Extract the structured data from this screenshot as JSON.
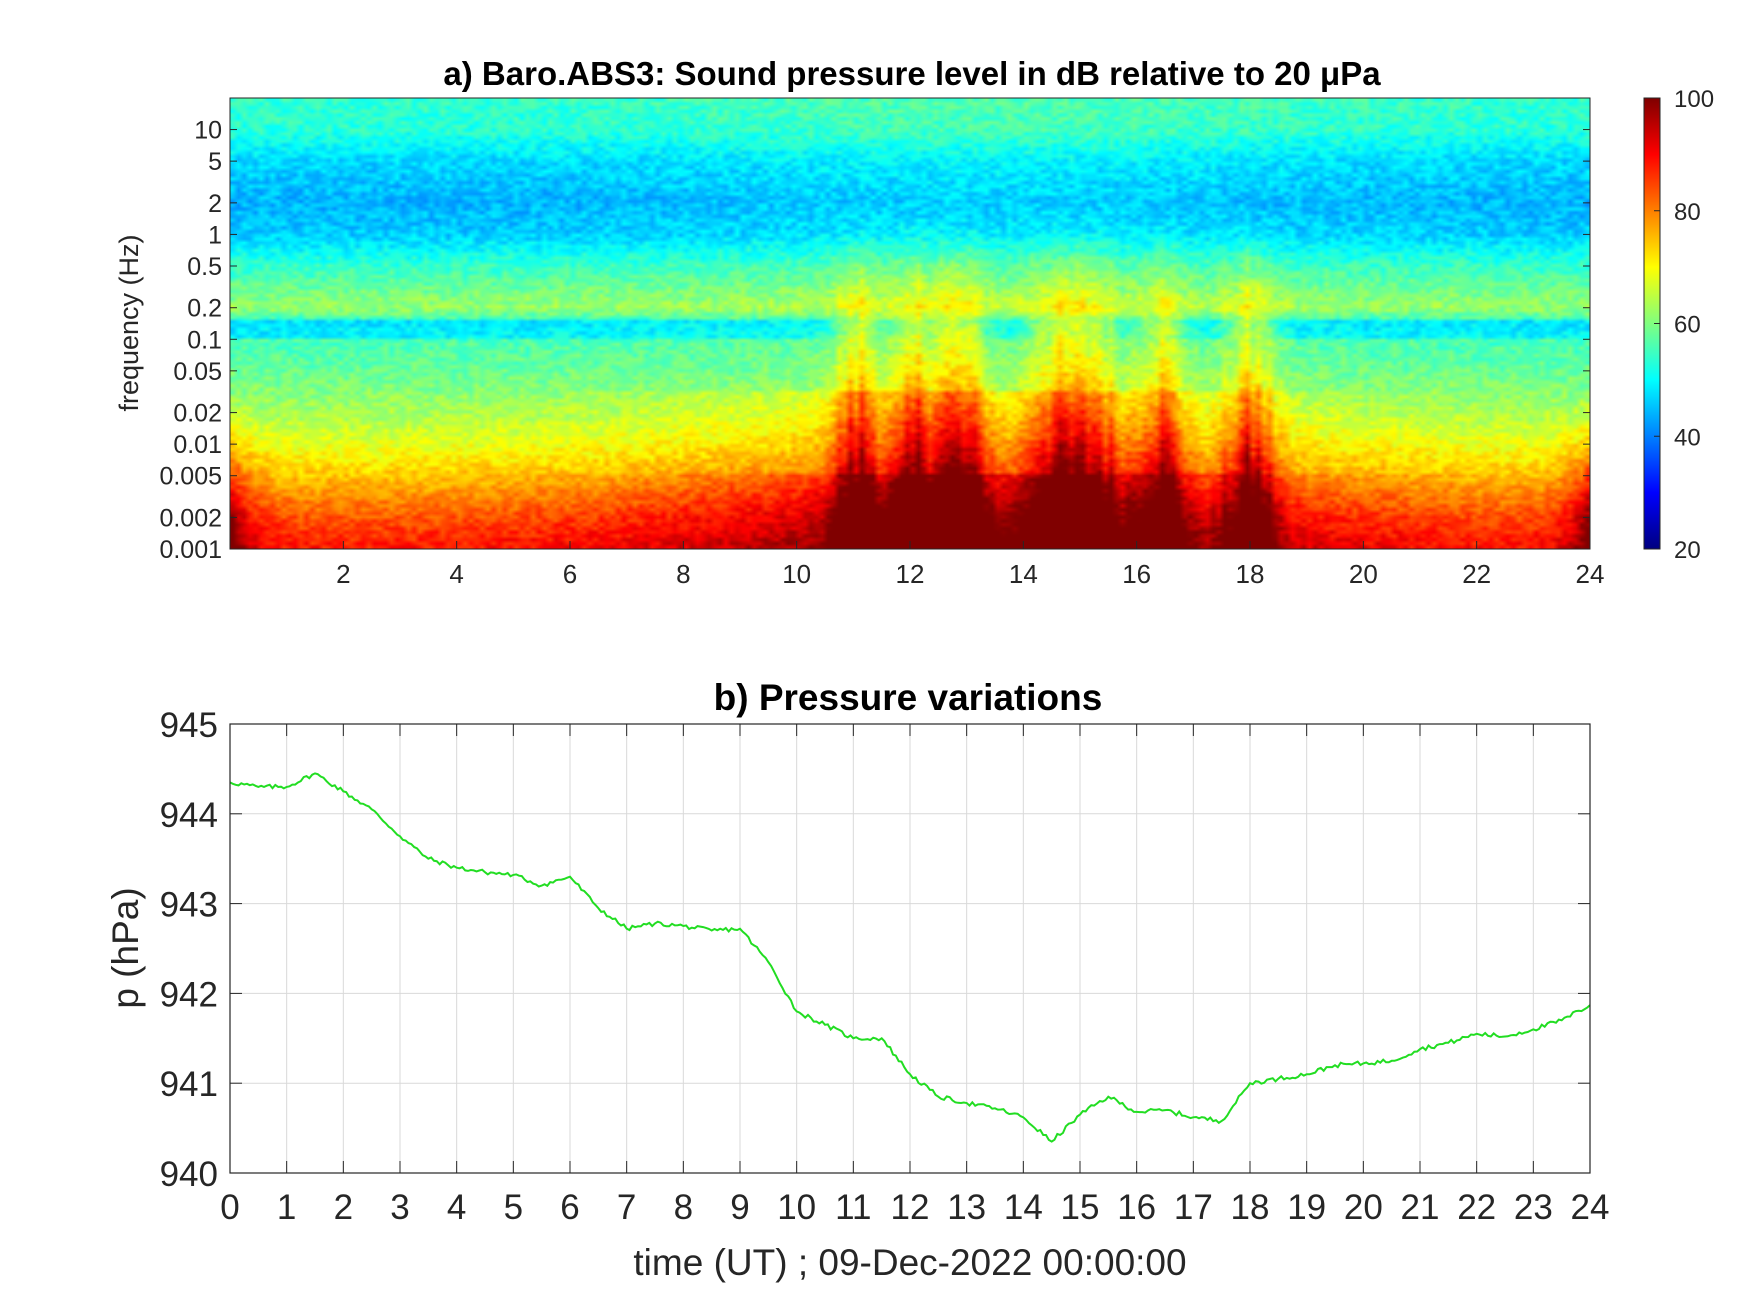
{
  "chart_data": [
    {
      "type": "heatmap",
      "title": "a) Baro.ABS3: Sound pressure level in dB relative to 20 μPa",
      "ylabel": "frequency (Hz)",
      "xlabel": "",
      "xlim": [
        0,
        24
      ],
      "ylim": [
        0.001,
        20
      ],
      "yscale": "log",
      "x_ticks": [
        "2",
        "4",
        "6",
        "8",
        "10",
        "12",
        "14",
        "16",
        "18",
        "20",
        "22",
        "24"
      ],
      "y_ticks": [
        "0.001",
        "0.002",
        "0.005",
        "0.01",
        "0.02",
        "0.05",
        "0.1",
        "0.2",
        "0.5",
        "1",
        "2",
        "5",
        "10"
      ],
      "colormap": "jet",
      "colorbar": {
        "min": 20,
        "max": 100,
        "ticks": [
          "20",
          "40",
          "60",
          "80",
          "100"
        ],
        "placement": "right"
      },
      "level_profile_by_frequency": [
        {
          "f": 0.001,
          "db": 88
        },
        {
          "f": 0.002,
          "db": 83
        },
        {
          "f": 0.005,
          "db": 74
        },
        {
          "f": 0.01,
          "db": 68
        },
        {
          "f": 0.02,
          "db": 63
        },
        {
          "f": 0.05,
          "db": 58
        },
        {
          "f": 0.15,
          "db": 54
        },
        {
          "f": 0.2,
          "db": 62
        },
        {
          "f": 0.5,
          "db": 54
        },
        {
          "f": 1,
          "db": 46
        },
        {
          "f": 2,
          "db": 44
        },
        {
          "f": 5,
          "db": 47
        },
        {
          "f": 10,
          "db": 53
        },
        {
          "f": 20,
          "db": 54
        }
      ],
      "activity_peaks_hours": [
        11.1,
        12.2,
        12.9,
        14.5,
        15.2,
        16.4,
        18.0
      ]
    },
    {
      "type": "line",
      "title": "b) Pressure variations",
      "xlabel": "time (UT) ; 09-Dec-2022 00:00:00",
      "ylabel": "p (hPa)",
      "xlim": [
        0,
        24
      ],
      "ylim": [
        940,
        945
      ],
      "grid": true,
      "line_color": "#22dd22",
      "x_ticks": [
        "0",
        "1",
        "2",
        "3",
        "4",
        "5",
        "6",
        "7",
        "8",
        "9",
        "10",
        "11",
        "12",
        "13",
        "14",
        "15",
        "16",
        "17",
        "18",
        "19",
        "20",
        "21",
        "22",
        "23",
        "24"
      ],
      "y_ticks": [
        "940",
        "941",
        "942",
        "943",
        "944",
        "945"
      ],
      "series": [
        {
          "x": [
            0,
            0.5,
            1,
            1.5,
            2,
            2.5,
            3,
            3.5,
            4,
            4.5,
            5,
            5.5,
            6,
            6.5,
            7,
            7.5,
            8,
            8.5,
            9,
            9.5,
            10,
            10.5,
            11,
            11.5,
            12,
            12.5,
            13,
            13.5,
            14,
            14.5,
            15,
            15.5,
            16,
            16.5,
            17,
            17.5,
            18,
            18.5,
            19,
            19.5,
            20,
            20.5,
            21,
            21.5,
            22,
            22.5,
            23,
            23.5,
            24
          ],
          "y": [
            944.35,
            944.3,
            944.3,
            944.45,
            944.25,
            944.05,
            943.75,
            943.5,
            943.4,
            943.35,
            943.32,
            943.2,
            943.3,
            942.95,
            942.72,
            942.78,
            942.75,
            942.7,
            942.72,
            942.35,
            941.8,
            941.65,
            941.5,
            941.5,
            941.1,
            940.85,
            940.78,
            940.72,
            940.62,
            940.35,
            940.65,
            940.85,
            940.68,
            940.7,
            940.62,
            940.58,
            941.0,
            941.05,
            941.1,
            941.2,
            941.22,
            941.25,
            941.38,
            941.45,
            941.55,
            941.52,
            941.6,
            941.7,
            941.87
          ]
        }
      ]
    }
  ]
}
